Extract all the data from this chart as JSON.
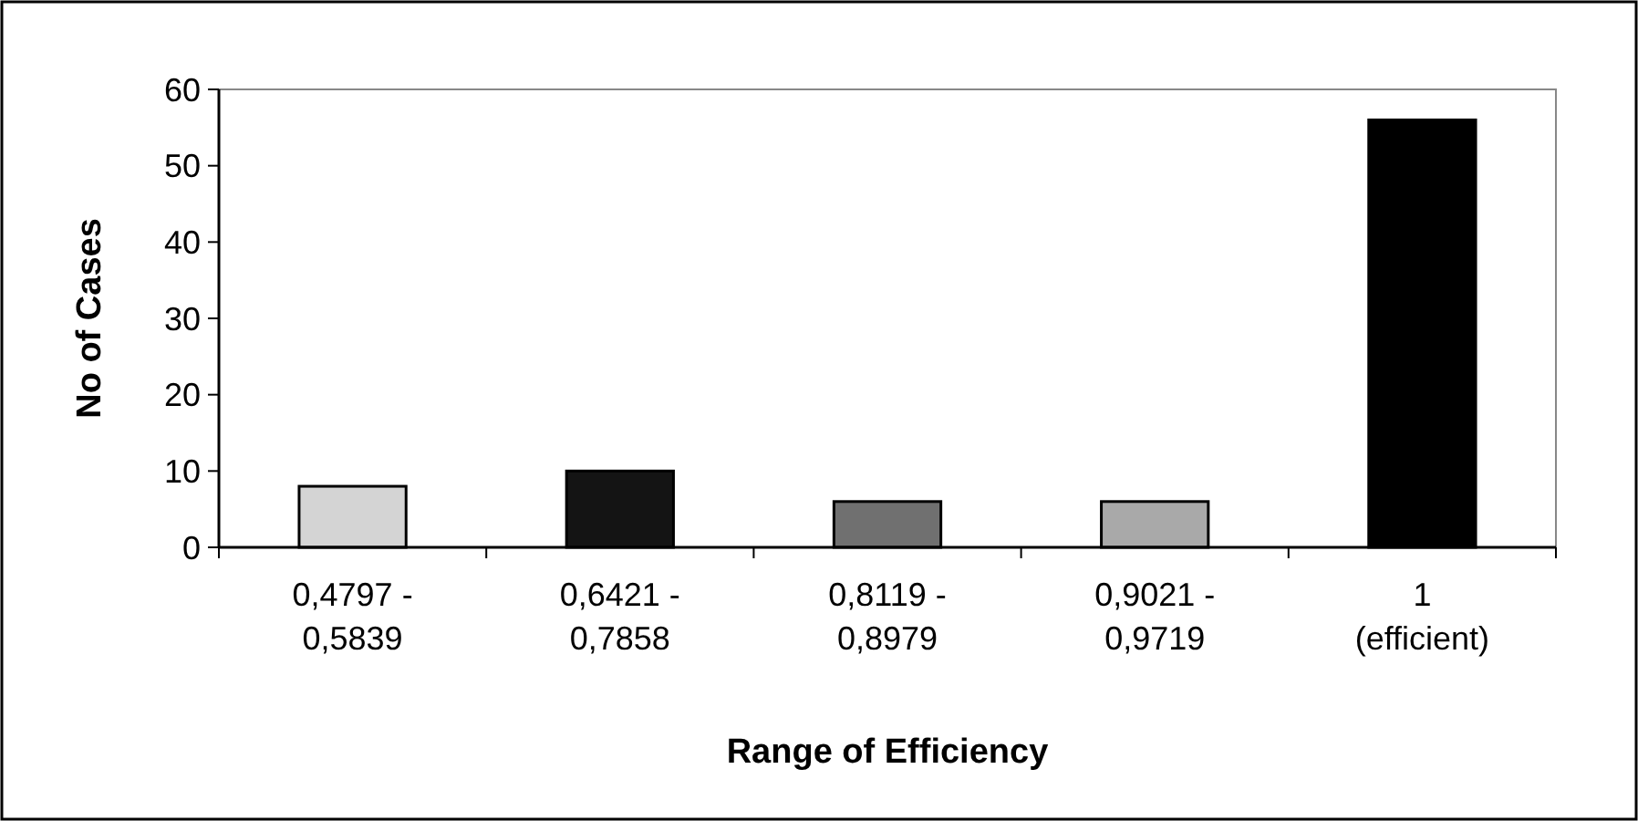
{
  "chart_data": {
    "type": "bar",
    "xlabel": "Range of Efficiency",
    "ylabel": "No of Cases",
    "categories": [
      "0,4797 -\n0,5839",
      "0,6421 -\n0,7858",
      "0,8119 -\n0,8979",
      "0,9021 -\n0,9719",
      "1\n(efficient)"
    ],
    "values": [
      8,
      10,
      6,
      6,
      56
    ],
    "colors": [
      "#d4d4d4",
      "#141414",
      "#707070",
      "#a9a9a9",
      "#000000"
    ],
    "ylim": [
      0,
      60
    ],
    "yticks": [
      0,
      10,
      20,
      30,
      40,
      50,
      60
    ],
    "grid": false
  }
}
